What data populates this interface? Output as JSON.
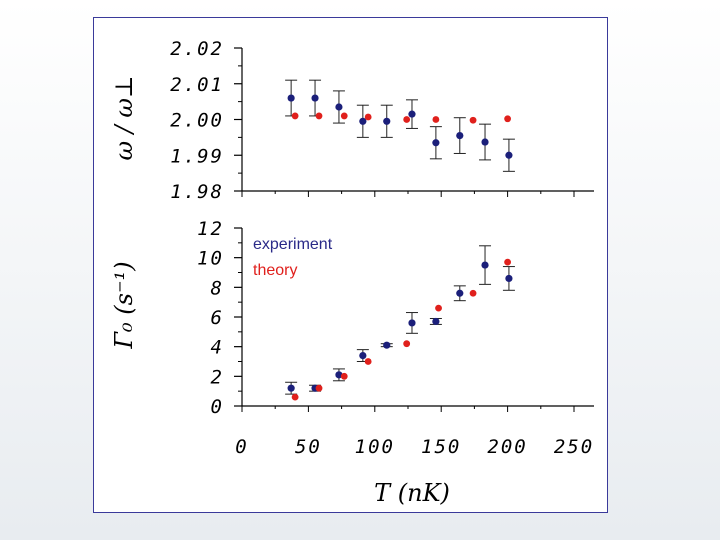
{
  "colors": {
    "experiment": "#1b1f7a",
    "theory": "#e0201c",
    "frame": "#3a3a9a"
  },
  "chart_data": [
    {
      "type": "scatter",
      "panel": "top",
      "ylabel": "ω / ω⊥",
      "xlim": [
        0,
        250
      ],
      "ylim": [
        1.98,
        2.02
      ],
      "y_ticks": [
        "2.02",
        "2.01",
        "2.00",
        "1.99",
        "1.98"
      ],
      "series": [
        {
          "name": "experiment",
          "x": [
            37,
            55,
            73,
            91,
            109,
            128,
            146,
            164,
            183,
            201
          ],
          "y": [
            2.006,
            2.006,
            2.0035,
            1.9995,
            1.9995,
            2.0015,
            1.9935,
            1.9955,
            1.9937,
            1.99
          ],
          "err": [
            0.005,
            0.005,
            0.0045,
            0.0045,
            0.0045,
            0.004,
            0.0045,
            0.005,
            0.005,
            0.0045
          ]
        },
        {
          "name": "theory",
          "x": [
            40,
            58,
            77,
            95,
            124,
            146,
            174,
            200
          ],
          "y": [
            2.001,
            2.001,
            2.001,
            2.0007,
            2.0,
            2.0,
            1.9998,
            2.0002
          ]
        }
      ]
    },
    {
      "type": "scatter",
      "panel": "bottom",
      "ylabel": "Γ₀ (s⁻¹)",
      "xlabel": "T (nK)",
      "xlim": [
        0,
        250
      ],
      "ylim": [
        0,
        12
      ],
      "y_ticks": [
        "12",
        "10",
        "8",
        "6",
        "4",
        "2",
        "0"
      ],
      "x_ticks": [
        "0",
        "50",
        "100",
        "150",
        "200",
        "250"
      ],
      "series": [
        {
          "name": "experiment",
          "x": [
            37,
            55,
            73,
            91,
            109,
            128,
            146,
            164,
            183,
            201
          ],
          "y": [
            1.2,
            1.2,
            2.1,
            3.4,
            4.1,
            5.6,
            5.7,
            7.6,
            9.5,
            8.6
          ],
          "err": [
            0.4,
            0.2,
            0.4,
            0.4,
            0.1,
            0.7,
            0.2,
            0.5,
            1.3,
            0.8
          ]
        },
        {
          "name": "theory",
          "x": [
            40,
            58,
            77,
            95,
            124,
            148,
            174,
            200
          ],
          "y": [
            0.6,
            1.2,
            2.0,
            3.0,
            4.2,
            6.6,
            7.6,
            9.7
          ]
        }
      ]
    }
  ],
  "legend": {
    "experiment": "experiment",
    "theory": "theory"
  }
}
